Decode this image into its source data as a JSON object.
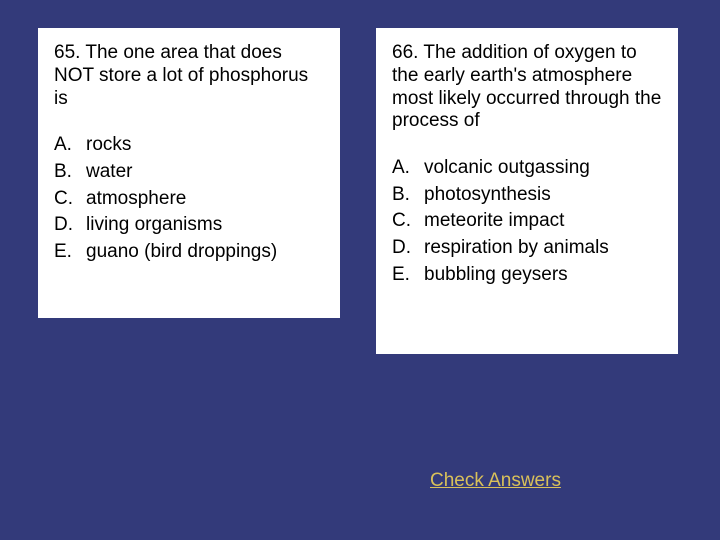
{
  "background_color": "#333a7a",
  "card_background": "#ffffff",
  "text_color": "#000000",
  "link_color": "#d9c05a",
  "font_size_question": 19,
  "font_size_option": 19,
  "q65": {
    "prompt": "65. The one area that does NOT store a lot of phosphorus is",
    "options": {
      "A": {
        "letter": "A.",
        "text": "rocks"
      },
      "B": {
        "letter": "B.",
        "text": "water"
      },
      "C": {
        "letter": "C.",
        "text": "atmosphere"
      },
      "D": {
        "letter": "D.",
        "text": "living organisms"
      },
      "E": {
        "letter": "E.",
        "text": "guano (bird droppings)"
      }
    }
  },
  "q66": {
    "prompt": "66. The addition of oxygen to the early earth's atmosphere most likely occurred through the process of",
    "options": {
      "A": {
        "letter": "A.",
        "text": "volcanic outgassing"
      },
      "B": {
        "letter": "B.",
        "text": "photosynthesis"
      },
      "C": {
        "letter": "C.",
        "text": "meteorite impact"
      },
      "D": {
        "letter": "D.",
        "text": "respiration by animals"
      },
      "E": {
        "letter": "E.",
        "text": "bubbling geysers"
      }
    }
  },
  "check_answers_label": "Check Answers"
}
